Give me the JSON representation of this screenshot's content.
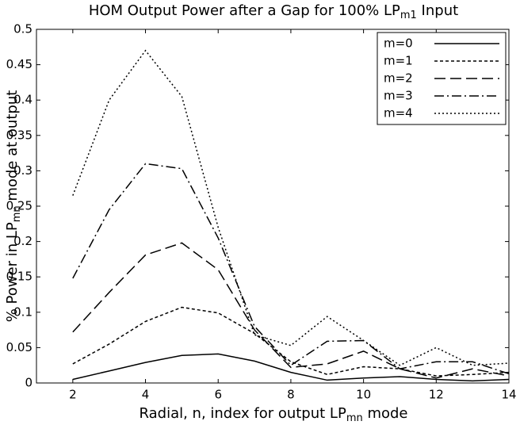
{
  "chart_data": {
    "type": "line",
    "title": [
      "HOM Output Power after a Gap for 100% LP",
      "m1",
      " Input"
    ],
    "xlabel": [
      "Radial, n, index for output LP",
      "mn",
      " mode"
    ],
    "ylabel": [
      "% Power in LP",
      "mn",
      " mode at output"
    ],
    "x": [
      2,
      3,
      4,
      5,
      6,
      7,
      8,
      9,
      10,
      11,
      12,
      13,
      14
    ],
    "series": [
      {
        "name": "m=0",
        "color": "#000000",
        "dash": "none",
        "values": [
          0.005,
          0.017,
          0.029,
          0.039,
          0.041,
          0.031,
          0.015,
          0.004,
          0.007,
          0.009,
          0.005,
          0.003,
          0.005
        ]
      },
      {
        "name": "m=1",
        "color": "#000000",
        "dash": "4 3",
        "values": [
          0.027,
          0.055,
          0.087,
          0.107,
          0.099,
          0.07,
          0.03,
          0.012,
          0.023,
          0.02,
          0.01,
          0.012,
          0.015
        ]
      },
      {
        "name": "m=2",
        "color": "#000000",
        "dash": "14 6",
        "values": [
          0.072,
          0.128,
          0.181,
          0.198,
          0.16,
          0.075,
          0.022,
          0.027,
          0.045,
          0.02,
          0.007,
          0.02,
          0.01
        ]
      },
      {
        "name": "m=3",
        "color": "#000000",
        "dash": "12 4 2 4",
        "values": [
          0.148,
          0.245,
          0.31,
          0.303,
          0.205,
          0.08,
          0.025,
          0.059,
          0.06,
          0.02,
          0.03,
          0.03,
          0.013
        ]
      },
      {
        "name": "m=4",
        "color": "#000000",
        "dash": "2 3",
        "values": [
          0.265,
          0.4,
          0.47,
          0.405,
          0.22,
          0.068,
          0.053,
          0.094,
          0.06,
          0.025,
          0.05,
          0.025,
          0.028
        ]
      }
    ],
    "xlim": [
      1,
      14
    ],
    "xticks": [
      2,
      4,
      6,
      8,
      10,
      12,
      14
    ],
    "ylim": [
      0,
      0.5
    ],
    "yticks": [
      0,
      0.05,
      0.1,
      0.15,
      0.2,
      0.25,
      0.3,
      0.35,
      0.4,
      0.45,
      0.5
    ],
    "grid": false,
    "legend": "upper right"
  }
}
